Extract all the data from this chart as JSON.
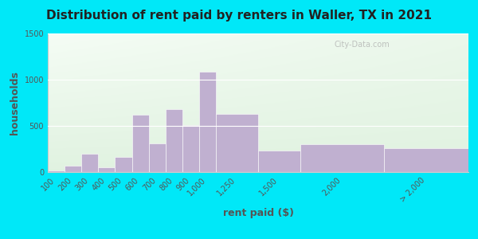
{
  "title": "Distribution of rent paid by renters in Waller, TX in 2021",
  "xlabel": "rent paid ($)",
  "ylabel": "households",
  "bar_color": "#c0b0d0",
  "bar_edgecolor": "#ffffff",
  "categories": [
    "100",
    "200",
    "300",
    "400",
    "500",
    "600",
    "700",
    "800",
    "900",
    "1,000",
    "1,250",
    "1,500",
    "2,000",
    "> 2,000"
  ],
  "values": [
    20,
    70,
    200,
    55,
    165,
    620,
    310,
    680,
    510,
    1090,
    630,
    230,
    300,
    255
  ],
  "bar_lefts": [
    0,
    100,
    200,
    300,
    400,
    500,
    600,
    700,
    800,
    900,
    1000,
    1250,
    1500,
    2000
  ],
  "bar_widths": [
    100,
    100,
    100,
    100,
    100,
    100,
    100,
    100,
    100,
    100,
    250,
    250,
    500,
    500
  ],
  "ylim": [
    0,
    1500
  ],
  "yticks": [
    0,
    500,
    1000,
    1500
  ],
  "bg_outer": "#00e8f8",
  "title_fontsize": 11,
  "axis_label_fontsize": 9,
  "tick_fontsize": 7,
  "watermark_text": "City-Data.com"
}
